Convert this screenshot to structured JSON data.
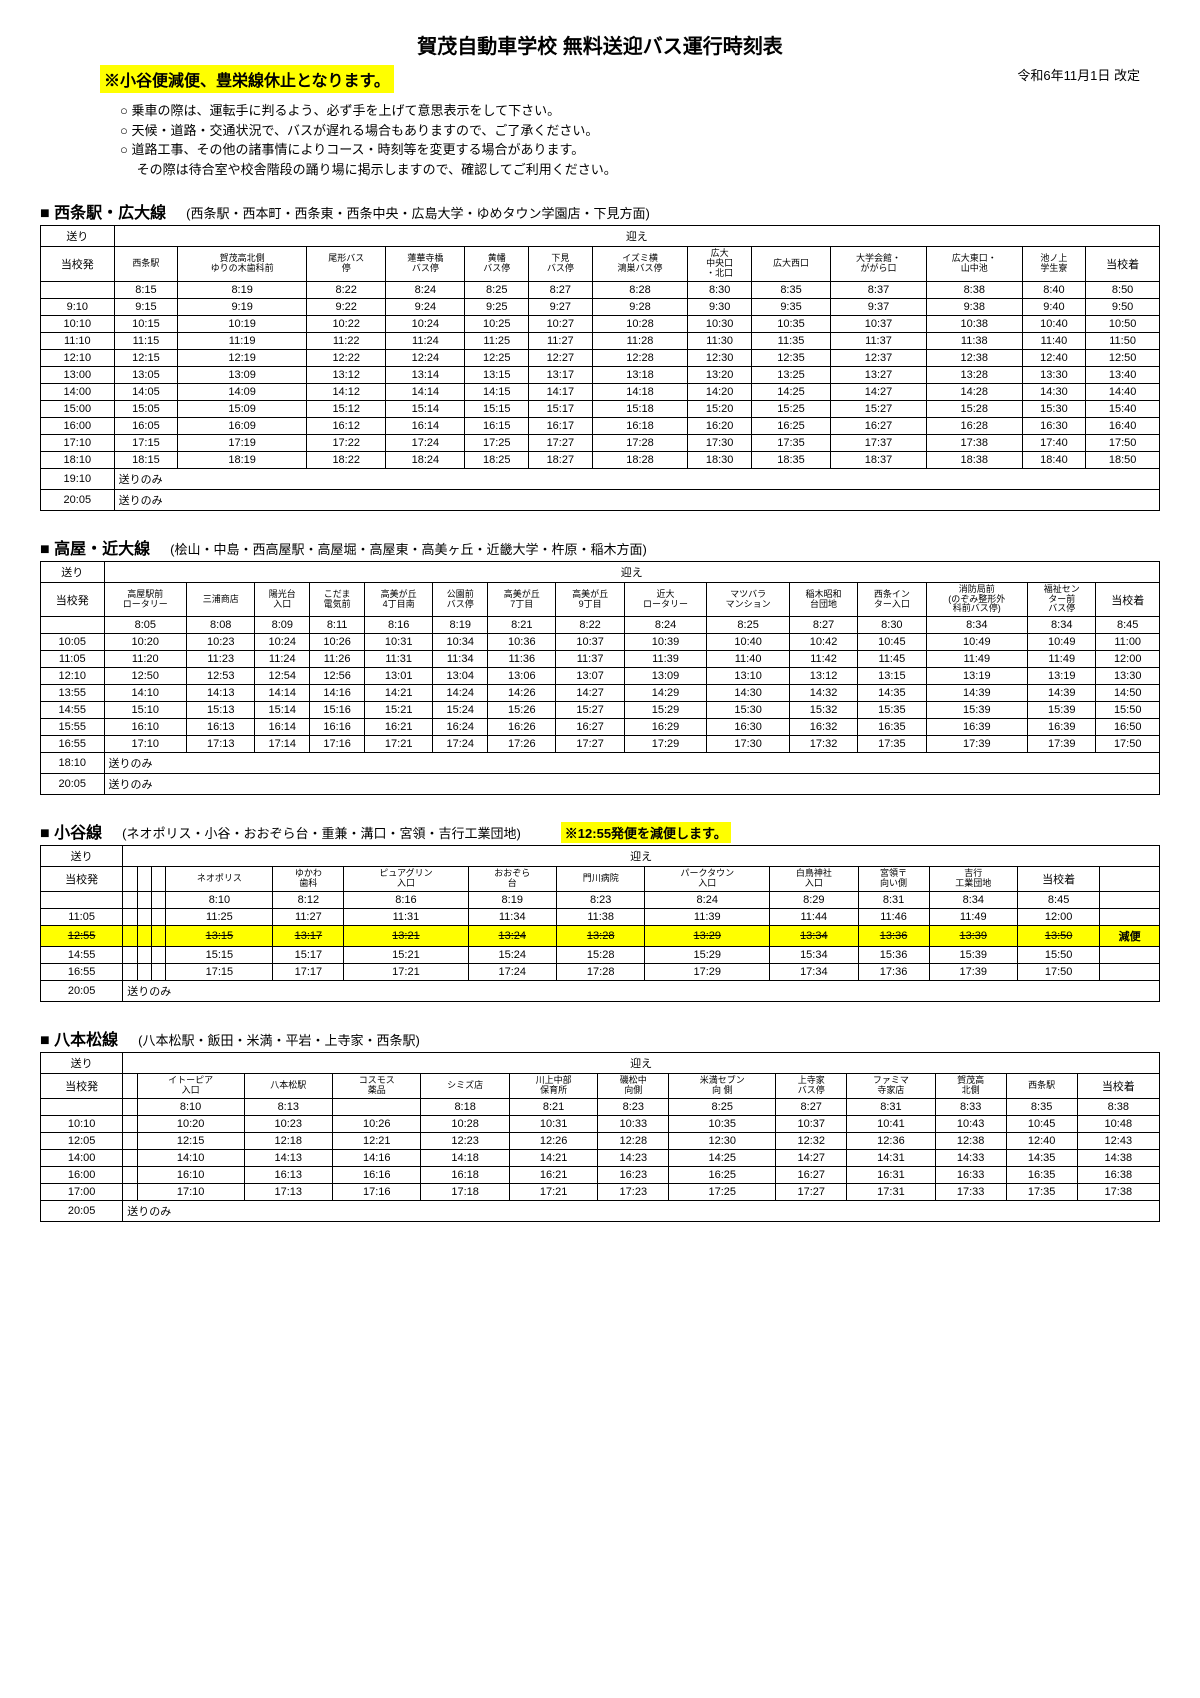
{
  "title": "賀茂自動車学校 無料送迎バス運行時刻表",
  "notice": "※小谷便減便、豊栄線休止となります。",
  "revision": "令和6年11月1日 改定",
  "instructions": [
    "○ 乗車の際は、運転手に判るよう、必ず手を上げて意思表示をして下さい。",
    "○ 天候・道路・交通状況で、バスが遅れる場合もありますので、ご了承ください。",
    "○ 道路工事、その他の諸事情によりコース・時刻等を変更する場合があります。",
    "　 その際は待合室や校舎階段の踊り場に掲示しますので、確認してご利用ください。"
  ],
  "t1": {
    "title": "■ 西条駅・広大線",
    "sub": "(西条駅・西本町・西条東・西条中央・広島大学・ゆめタウン学園店・下見方面)",
    "out": "送り",
    "in": "迎え",
    "dep": "当校発",
    "arr": "当校着",
    "stops": [
      "西条駅",
      "賀茂高北側\nゆりの木歯科前",
      "尾形バス\n停",
      "蓮華寺橋\nバス停",
      "黄幡\nバス停",
      "下見\nバス停",
      "イズミ横\n鴻巣バス停",
      "広大\n中央口\n・北口",
      "広大西口",
      "大学会館・\nががら口",
      "広大東口・\n山中池",
      "池ノ上\n学生寮"
    ],
    "rows": [
      [
        "",
        "8:15",
        "8:19",
        "8:22",
        "8:24",
        "8:25",
        "8:27",
        "8:28",
        "8:30",
        "8:35",
        "8:37",
        "8:38",
        "8:40",
        "8:50"
      ],
      [
        "9:10",
        "9:15",
        "9:19",
        "9:22",
        "9:24",
        "9:25",
        "9:27",
        "9:28",
        "9:30",
        "9:35",
        "9:37",
        "9:38",
        "9:40",
        "9:50"
      ],
      [
        "10:10",
        "10:15",
        "10:19",
        "10:22",
        "10:24",
        "10:25",
        "10:27",
        "10:28",
        "10:30",
        "10:35",
        "10:37",
        "10:38",
        "10:40",
        "10:50"
      ],
      [
        "11:10",
        "11:15",
        "11:19",
        "11:22",
        "11:24",
        "11:25",
        "11:27",
        "11:28",
        "11:30",
        "11:35",
        "11:37",
        "11:38",
        "11:40",
        "11:50"
      ],
      [
        "12:10",
        "12:15",
        "12:19",
        "12:22",
        "12:24",
        "12:25",
        "12:27",
        "12:28",
        "12:30",
        "12:35",
        "12:37",
        "12:38",
        "12:40",
        "12:50"
      ],
      [
        "13:00",
        "13:05",
        "13:09",
        "13:12",
        "13:14",
        "13:15",
        "13:17",
        "13:18",
        "13:20",
        "13:25",
        "13:27",
        "13:28",
        "13:30",
        "13:40"
      ],
      [
        "14:00",
        "14:05",
        "14:09",
        "14:12",
        "14:14",
        "14:15",
        "14:17",
        "14:18",
        "14:20",
        "14:25",
        "14:27",
        "14:28",
        "14:30",
        "14:40"
      ],
      [
        "15:00",
        "15:05",
        "15:09",
        "15:12",
        "15:14",
        "15:15",
        "15:17",
        "15:18",
        "15:20",
        "15:25",
        "15:27",
        "15:28",
        "15:30",
        "15:40"
      ],
      [
        "16:00",
        "16:05",
        "16:09",
        "16:12",
        "16:14",
        "16:15",
        "16:17",
        "16:18",
        "16:20",
        "16:25",
        "16:27",
        "16:28",
        "16:30",
        "16:40"
      ],
      [
        "17:10",
        "17:15",
        "17:19",
        "17:22",
        "17:24",
        "17:25",
        "17:27",
        "17:28",
        "17:30",
        "17:35",
        "17:37",
        "17:38",
        "17:40",
        "17:50"
      ],
      [
        "18:10",
        "18:15",
        "18:19",
        "18:22",
        "18:24",
        "18:25",
        "18:27",
        "18:28",
        "18:30",
        "18:35",
        "18:37",
        "18:38",
        "18:40",
        "18:50"
      ]
    ],
    "extra": [
      [
        "19:10",
        "送りのみ"
      ],
      [
        "20:05",
        "送りのみ"
      ]
    ]
  },
  "t2": {
    "title": "■ 高屋・近大線",
    "sub": "(桧山・中島・西高屋駅・高屋堀・高屋東・高美ヶ丘・近畿大学・杵原・稲木方面)",
    "out": "送り",
    "in": "迎え",
    "dep": "当校発",
    "arr": "当校着",
    "stops": [
      "高屋駅前\nロータリー",
      "三浦商店",
      "陽光台\n入口",
      "こだま\n電気前",
      "高美が丘\n4丁目南",
      "公園前\nバス停",
      "高美が丘\n7丁目",
      "高美が丘\n9丁目",
      "近大\nロータリー",
      "マツバラ\nマンション",
      "稲木昭和\n台団地",
      "西条イン\nター入口",
      "消防局前\n(のぞみ整形外\n科前バス停)",
      "福祉セン\nター前\nバス停"
    ],
    "rows": [
      [
        "",
        "8:05",
        "8:08",
        "8:09",
        "8:11",
        "8:16",
        "8:19",
        "8:21",
        "8:22",
        "8:24",
        "8:25",
        "8:27",
        "8:30",
        "8:34",
        "8:34",
        "8:45"
      ],
      [
        "10:05",
        "10:20",
        "10:23",
        "10:24",
        "10:26",
        "10:31",
        "10:34",
        "10:36",
        "10:37",
        "10:39",
        "10:40",
        "10:42",
        "10:45",
        "10:49",
        "10:49",
        "11:00"
      ],
      [
        "11:05",
        "11:20",
        "11:23",
        "11:24",
        "11:26",
        "11:31",
        "11:34",
        "11:36",
        "11:37",
        "11:39",
        "11:40",
        "11:42",
        "11:45",
        "11:49",
        "11:49",
        "12:00"
      ],
      [
        "12:10",
        "12:50",
        "12:53",
        "12:54",
        "12:56",
        "13:01",
        "13:04",
        "13:06",
        "13:07",
        "13:09",
        "13:10",
        "13:12",
        "13:15",
        "13:19",
        "13:19",
        "13:30"
      ],
      [
        "13:55",
        "14:10",
        "14:13",
        "14:14",
        "14:16",
        "14:21",
        "14:24",
        "14:26",
        "14:27",
        "14:29",
        "14:30",
        "14:32",
        "14:35",
        "14:39",
        "14:39",
        "14:50"
      ],
      [
        "14:55",
        "15:10",
        "15:13",
        "15:14",
        "15:16",
        "15:21",
        "15:24",
        "15:26",
        "15:27",
        "15:29",
        "15:30",
        "15:32",
        "15:35",
        "15:39",
        "15:39",
        "15:50"
      ],
      [
        "15:55",
        "16:10",
        "16:13",
        "16:14",
        "16:16",
        "16:21",
        "16:24",
        "16:26",
        "16:27",
        "16:29",
        "16:30",
        "16:32",
        "16:35",
        "16:39",
        "16:39",
        "16:50"
      ],
      [
        "16:55",
        "17:10",
        "17:13",
        "17:14",
        "17:16",
        "17:21",
        "17:24",
        "17:26",
        "17:27",
        "17:29",
        "17:30",
        "17:32",
        "17:35",
        "17:39",
        "17:39",
        "17:50"
      ]
    ],
    "extra": [
      [
        "18:10",
        "送りのみ"
      ],
      [
        "20:05",
        "送りのみ"
      ]
    ]
  },
  "t3": {
    "title": "■ 小谷線",
    "sub": "(ネオポリス・小谷・おおぞら台・重兼・溝口・宮領・吉行工業団地)",
    "note": "※12:55発便を減便します。",
    "out": "送り",
    "in": "迎え",
    "dep": "当校発",
    "arr": "当校着",
    "empties": 3,
    "stops": [
      "ネオポリス",
      "ゆかわ\n歯科",
      "ピュアグリン\n入口",
      "おおぞら\n台",
      "門川病院",
      "パークタウン\n入口",
      "白鳥神社\n入口",
      "宮領〒\n向い側",
      "吉行\n工業団地"
    ],
    "rows": [
      [
        "",
        "",
        "",
        "",
        "8:10",
        "8:12",
        "8:16",
        "8:19",
        "8:23",
        "8:24",
        "8:29",
        "8:31",
        "8:34",
        "8:45",
        ""
      ],
      [
        "11:05",
        "",
        "",
        "",
        "11:25",
        "11:27",
        "11:31",
        "11:34",
        "11:38",
        "11:39",
        "11:44",
        "11:46",
        "11:49",
        "12:00",
        ""
      ],
      [
        "12:55",
        "",
        "",
        "",
        "13:15",
        "13:17",
        "13:21",
        "13:24",
        "13:28",
        "13:29",
        "13:34",
        "13:36",
        "13:39",
        "13:50",
        "減便"
      ],
      [
        "14:55",
        "",
        "",
        "",
        "15:15",
        "15:17",
        "15:21",
        "15:24",
        "15:28",
        "15:29",
        "15:34",
        "15:36",
        "15:39",
        "15:50",
        ""
      ],
      [
        "16:55",
        "",
        "",
        "",
        "17:15",
        "17:17",
        "17:21",
        "17:24",
        "17:28",
        "17:29",
        "17:34",
        "17:36",
        "17:39",
        "17:50",
        ""
      ]
    ],
    "strike_row": 2,
    "extra": [
      [
        "20:05",
        "送りのみ"
      ]
    ]
  },
  "t4": {
    "title": "■ 八本松線",
    "sub": "(八本松駅・飯田・米満・平岩・上寺家・西条駅)",
    "out": "送り",
    "in": "迎え",
    "dep": "当校発",
    "arr": "当校着",
    "empties": 1,
    "stops": [
      "イトーピア\n入口",
      "八本松駅",
      "コスモス\n薬品",
      "シミズ店",
      "川上中部\n保育所",
      "磯松中\n向側",
      "米満セブン\n向 側",
      "上寺家\nバス停",
      "ファミマ\n寺家店",
      "賀茂高\n北側",
      "西条駅"
    ],
    "rows": [
      [
        "",
        "",
        "8:10",
        "8:13",
        "",
        "8:18",
        "8:21",
        "8:23",
        "8:25",
        "8:27",
        "8:31",
        "8:33",
        "8:35",
        "8:38"
      ],
      [
        "10:10",
        "",
        "10:20",
        "10:23",
        "10:26",
        "10:28",
        "10:31",
        "10:33",
        "10:35",
        "10:37",
        "10:41",
        "10:43",
        "10:45",
        "10:48"
      ],
      [
        "12:05",
        "",
        "12:15",
        "12:18",
        "12:21",
        "12:23",
        "12:26",
        "12:28",
        "12:30",
        "12:32",
        "12:36",
        "12:38",
        "12:40",
        "12:43"
      ],
      [
        "14:00",
        "",
        "14:10",
        "14:13",
        "14:16",
        "14:18",
        "14:21",
        "14:23",
        "14:25",
        "14:27",
        "14:31",
        "14:33",
        "14:35",
        "14:38"
      ],
      [
        "16:00",
        "",
        "16:10",
        "16:13",
        "16:16",
        "16:18",
        "16:21",
        "16:23",
        "16:25",
        "16:27",
        "16:31",
        "16:33",
        "16:35",
        "16:38"
      ],
      [
        "17:00",
        "",
        "17:10",
        "17:13",
        "17:16",
        "17:18",
        "17:21",
        "17:23",
        "17:25",
        "17:27",
        "17:31",
        "17:33",
        "17:35",
        "17:38"
      ]
    ],
    "extra": [
      [
        "20:05",
        "送りのみ"
      ]
    ]
  }
}
